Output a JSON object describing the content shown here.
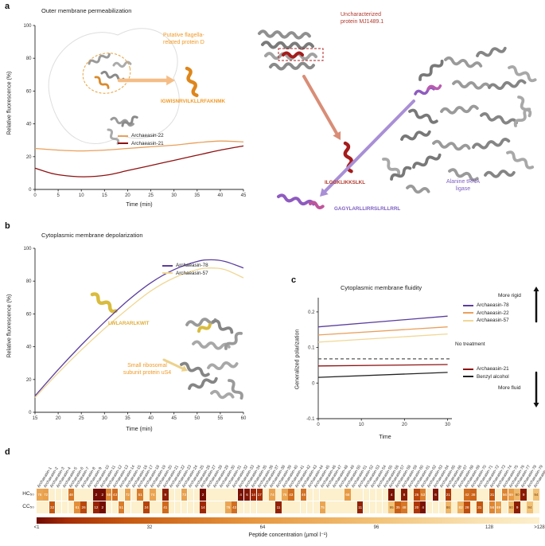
{
  "panels": {
    "a": "a",
    "b": "b",
    "c": "c",
    "d": "d"
  },
  "colors": {
    "orange": "#f09a28",
    "red": "#b03a2e",
    "purple": "#7d5fc0",
    "yellow": "#dfae3a"
  },
  "annotations": {
    "flagella_1": "Putative flagella-",
    "flagella_2": "related protein D",
    "flagella_seq": "IGWISNRVILKLLRFAKNMK",
    "mj_1": "Uncharacterized",
    "mj_2": "protein MJ1489.1",
    "mj_seq": "ILGGKLIKKSLKL",
    "ligase_1": "Alanine tRNA",
    "ligase_2": "ligase",
    "ligase_seq": "GAGYLARLLIRRSLRLLRRL",
    "us4_seq": "LWLARARLKWIT",
    "us4_1": "Small ribosomal",
    "us4_2": "subunit protein uS4"
  },
  "panel_c": {
    "more_rigid": "More rigid",
    "more_fluid": "More fluid"
  },
  "chart_data": [
    {
      "type": "line",
      "title": "Outer membrane permeabilization",
      "xlabel": "Time (min)",
      "ylabel": "Relative fluorescence (%)",
      "xlim": [
        0,
        45
      ],
      "ylim": [
        0,
        100
      ],
      "xticks": [
        0,
        5,
        10,
        15,
        20,
        25,
        30,
        35,
        40,
        45
      ],
      "yticks": [
        0,
        20,
        40,
        60,
        80,
        100
      ],
      "legend_position": "lower right",
      "series": [
        {
          "name": "Archaeasin-22",
          "color": "#e9a05c",
          "points": [
            [
              0,
              25
            ],
            [
              5,
              24
            ],
            [
              10,
              23.5
            ],
            [
              15,
              24
            ],
            [
              20,
              25
            ],
            [
              25,
              26
            ],
            [
              30,
              27
            ],
            [
              35,
              28.5
            ],
            [
              40,
              29.5
            ],
            [
              45,
              29
            ]
          ]
        },
        {
          "name": "Archaeasin-21",
          "color": "#8e1111",
          "points": [
            [
              0,
              13
            ],
            [
              4,
              9.5
            ],
            [
              8,
              8
            ],
            [
              12,
              7.8
            ],
            [
              16,
              9
            ],
            [
              20,
              11.5
            ],
            [
              24,
              14
            ],
            [
              28,
              16.5
            ],
            [
              32,
              19
            ],
            [
              36,
              21.5
            ],
            [
              40,
              24
            ],
            [
              45,
              26.5
            ]
          ]
        }
      ]
    },
    {
      "type": "line",
      "title": "Cytoplasmic membrane depolarization",
      "xlabel": "Time (min)",
      "ylabel": "Relative fluorescence (%)",
      "xlim": [
        15,
        60
      ],
      "ylim": [
        0,
        100
      ],
      "xticks": [
        15,
        20,
        25,
        30,
        35,
        40,
        45,
        50,
        55,
        60
      ],
      "yticks": [
        0,
        20,
        40,
        60,
        80,
        100
      ],
      "legend_position": "upper right",
      "series": [
        {
          "name": "Archaeasin-78",
          "color": "#5b3d9e",
          "points": [
            [
              15,
              10
            ],
            [
              20,
              26
            ],
            [
              25,
              41
            ],
            [
              30,
              55
            ],
            [
              35,
              68
            ],
            [
              40,
              79
            ],
            [
              45,
              87
            ],
            [
              50,
              92
            ],
            [
              53,
              93
            ],
            [
              56,
              92
            ],
            [
              60,
              88
            ]
          ]
        },
        {
          "name": "Archaeasin-57",
          "color": "#f0d795",
          "points": [
            [
              15,
              9
            ],
            [
              20,
              24
            ],
            [
              25,
              38
            ],
            [
              30,
              51
            ],
            [
              35,
              63
            ],
            [
              40,
              74
            ],
            [
              45,
              82
            ],
            [
              50,
              87
            ],
            [
              53,
              88
            ],
            [
              56,
              87
            ],
            [
              60,
              82
            ]
          ]
        }
      ]
    },
    {
      "type": "line",
      "title": "Cytoplasmic membrane fluidity",
      "xlabel": "Time",
      "ylabel": "Generalized polarization",
      "xlim": [
        0,
        31
      ],
      "ylim": [
        -0.1,
        0.24
      ],
      "xticks": [
        0,
        10,
        20,
        30
      ],
      "yticks": [
        -0.1,
        0,
        0.1,
        0.2
      ],
      "legend_position": "right",
      "series": [
        {
          "name": "Archaeasin-78",
          "color": "#5b3d9e",
          "points": [
            [
              0,
              0.158
            ],
            [
              30,
              0.188
            ]
          ]
        },
        {
          "name": "Archaeasin-22",
          "color": "#e9a05c",
          "points": [
            [
              0,
              0.135
            ],
            [
              30,
              0.158
            ]
          ]
        },
        {
          "name": "Archaeasin-57",
          "color": "#f0d795",
          "points": [
            [
              0,
              0.115
            ],
            [
              30,
              0.138
            ]
          ]
        },
        {
          "name": "No treatment",
          "color": "#555555",
          "dash": true,
          "points": [
            [
              0,
              0.068
            ],
            [
              31,
              0.068
            ]
          ]
        },
        {
          "name": "Archaeasin-21",
          "color": "#8e1111",
          "points": [
            [
              0,
              0.048
            ],
            [
              30,
              0.052
            ]
          ]
        },
        {
          "name": "Benzyl alcohol",
          "color": "#222222",
          "points": [
            [
              0,
              0.016
            ],
            [
              30,
              0.03
            ]
          ]
        }
      ]
    },
    {
      "type": "heatmap",
      "rows": [
        "HC₅₀",
        "CC₅₀"
      ],
      "columns": [
        "Archaeasin-1",
        "Archaeasin-2",
        "Archaeasin-3",
        "Archaeasin-4",
        "Archaeasin-5",
        "Archaeasin-6",
        "Archaeasin-7",
        "Archaeasin-8",
        "Archaeasin-9",
        "Archaeasin-10",
        "Archaeasin-11",
        "Archaeasin-12",
        "Archaeasin-13",
        "Archaeasin-14",
        "Archaeasin-15",
        "Archaeasin-16",
        "Archaeasin-17",
        "Archaeasin-18",
        "Archaeasin-19",
        "Archaeasin-20",
        "Archaeasin-21",
        "Archaeasin-22",
        "Archaeasin-23",
        "Archaeasin-24",
        "Archaeasin-25",
        "Archaeasin-26",
        "Archaeasin-27",
        "Archaeasin-28",
        "Archaeasin-29",
        "Archaeasin-30",
        "Archaeasin-31",
        "Archaeasin-32",
        "Archaeasin-33",
        "Archaeasin-34",
        "Archaeasin-35",
        "Archaeasin-36",
        "Archaeasin-37",
        "Archaeasin-38",
        "Archaeasin-39",
        "Archaeasin-40",
        "Archaeasin-41",
        "Archaeasin-42",
        "Archaeasin-43",
        "Archaeasin-44",
        "Archaeasin-45",
        "Archaeasin-46",
        "Archaeasin-47",
        "Archaeasin-48",
        "Archaeasin-49",
        "Archaeasin-50",
        "Archaeasin-51",
        "Archaeasin-52",
        "Archaeasin-53",
        "Archaeasin-54",
        "Archaeasin-55",
        "Archaeasin-56",
        "Archaeasin-57",
        "Archaeasin-58",
        "Archaeasin-59",
        "Archaeasin-60",
        "Archaeasin-61",
        "Archaeasin-62",
        "Archaeasin-63",
        "Archaeasin-64",
        "Archaeasin-65",
        "Archaeasin-66",
        "Archaeasin-67",
        "Archaeasin-68",
        "Archaeasin-69",
        "Archaeasin-70",
        "Archaeasin-71",
        "Archaeasin-72",
        "Archaeasin-73",
        "Archaeasin-74",
        "Archaeasin-75",
        "Archaeasin-76",
        "Archaeasin-77",
        "Archaeasin-78",
        "Archaeasin-79",
        "Archaeasin-80"
      ],
      "values": [
        [
          76,
          72,
          null,
          null,
          null,
          48,
          null,
          null,
          null,
          2,
          2,
          58,
          43,
          null,
          72,
          null,
          51,
          null,
          74,
          null,
          9,
          null,
          null,
          73,
          null,
          null,
          2,
          null,
          null,
          null,
          null,
          null,
          4,
          6,
          14,
          17,
          null,
          74,
          null,
          76,
          43,
          null,
          46,
          null,
          null,
          null,
          null,
          null,
          null,
          68,
          null,
          null,
          null,
          null,
          null,
          null,
          4,
          null,
          8,
          null,
          25,
          53,
          null,
          6,
          null,
          21,
          null,
          null,
          42,
          38,
          null,
          null,
          31,
          null,
          56,
          69,
          90,
          9,
          null,
          94
        ],
        [
          null,
          null,
          32,
          null,
          null,
          null,
          61,
          26,
          null,
          12,
          2,
          null,
          null,
          51,
          null,
          null,
          null,
          24,
          null,
          null,
          41,
          null,
          null,
          null,
          null,
          null,
          14,
          null,
          null,
          null,
          76,
          43,
          null,
          null,
          null,
          null,
          null,
          null,
          11,
          null,
          null,
          null,
          null,
          null,
          null,
          75,
          null,
          null,
          null,
          null,
          null,
          11,
          null,
          null,
          null,
          null,
          95,
          35,
          48,
          null,
          20,
          4,
          null,
          null,
          null,
          86,
          null,
          82,
          28,
          null,
          31,
          null,
          56,
          69,
          null,
          90,
          9,
          null,
          94,
          null
        ]
      ],
      "colorbar": {
        "label": "Peptide concentration (µmol l⁻¹)",
        "ticks": [
          "<1",
          "32",
          "64",
          "96",
          "128",
          ">128"
        ]
      }
    }
  ]
}
